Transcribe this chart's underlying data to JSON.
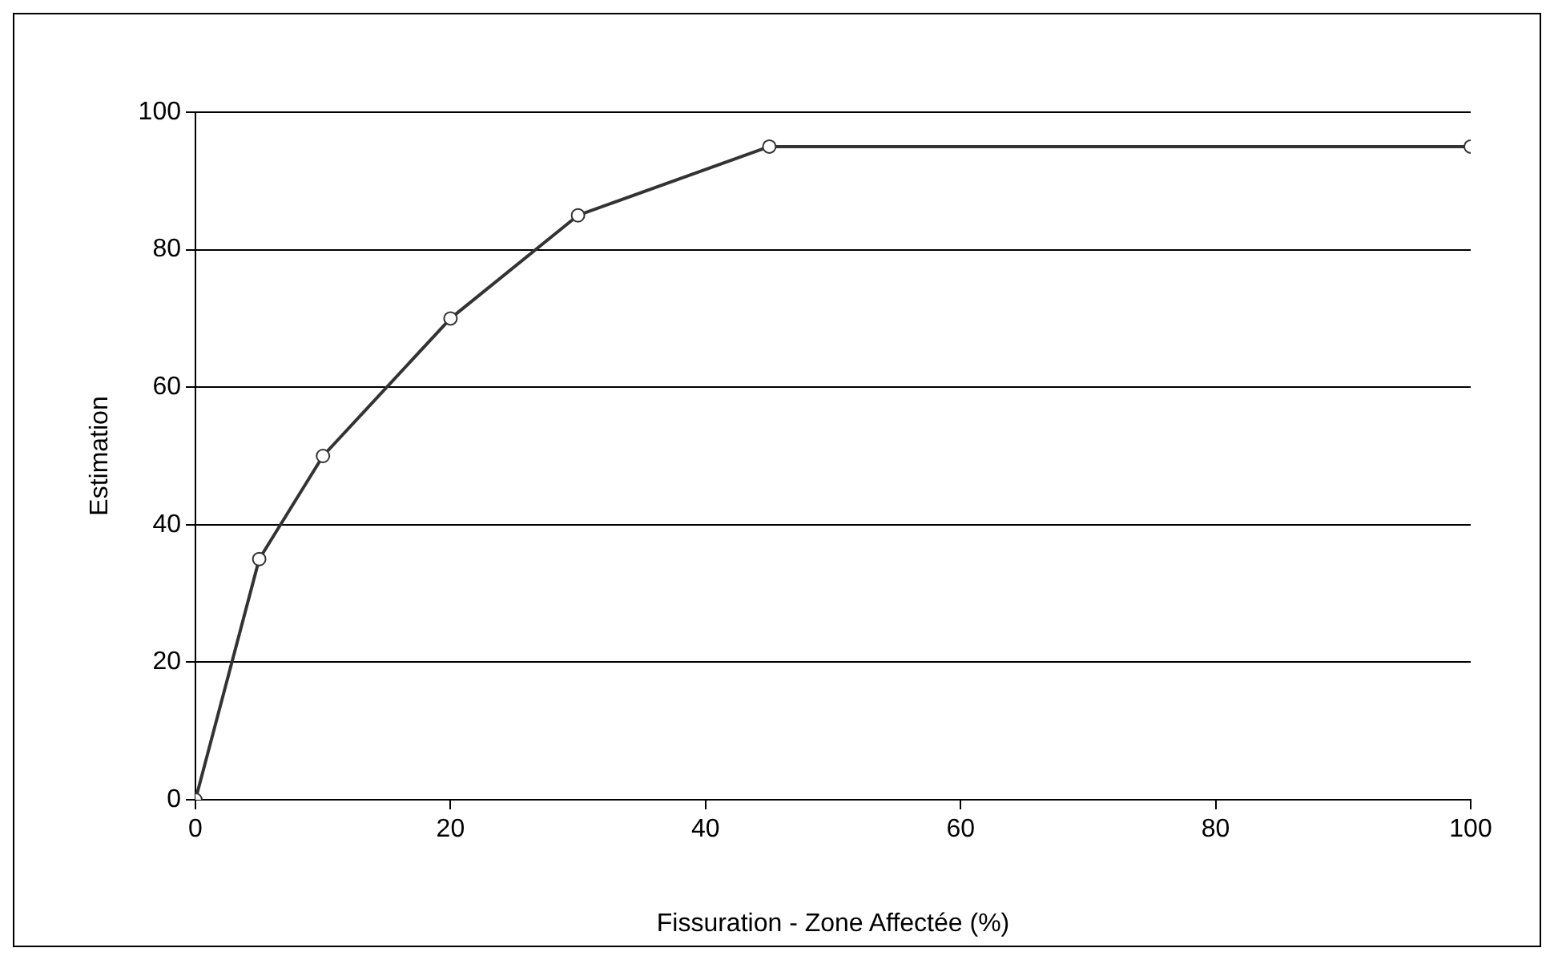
{
  "chart_data": {
    "type": "line",
    "xlabel": "Fissuration - Zone Affectée (%)",
    "ylabel": "Estimation",
    "x": [
      0,
      5,
      10,
      20,
      30,
      45,
      100
    ],
    "series": [
      {
        "color": "#333333",
        "values": [
          0,
          35,
          50,
          70,
          85,
          95,
          95
        ]
      }
    ],
    "xlim": [
      0,
      100
    ],
    "xticks": [
      0,
      20,
      40,
      60,
      80,
      100
    ],
    "ylim": [
      0,
      100
    ],
    "yticks": [
      0,
      20,
      40,
      60,
      80,
      100
    ],
    "grid": "y",
    "marker": "circle",
    "line_style": "solid"
  }
}
